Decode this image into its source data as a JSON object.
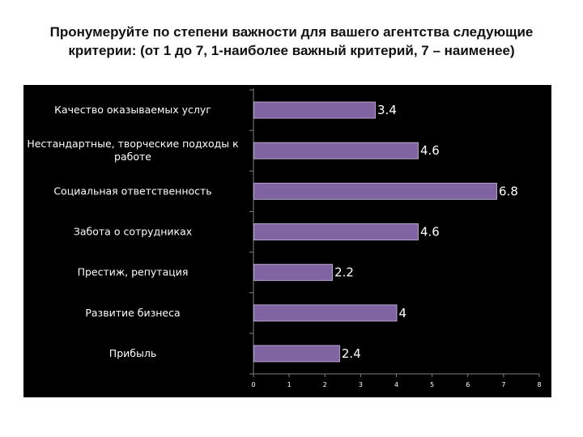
{
  "page": {
    "title_line1": "Пронумеруйте по степени важности для вашего агентства следующие",
    "title_line2": "критерии: (от 1 до 7, 1-наиболее важный критерий, 7 – наименее)"
  },
  "colors": {
    "bar_fill": "#8064a2",
    "bar_stroke": "#b6a4cc",
    "background": "#000000",
    "text": "#ffffff"
  },
  "chart_data": {
    "type": "bar",
    "orientation": "horizontal",
    "categories": [
      [
        "Качество оказываемых услуг"
      ],
      [
        "Нестандартные, творческие подходы к",
        "работе"
      ],
      [
        "Социальная ответственность"
      ],
      [
        "Забота о сотрудниках"
      ],
      [
        "Престиж, репутация"
      ],
      [
        "Развитие бизнеса"
      ],
      [
        "Прибыль"
      ]
    ],
    "values": [
      3.4,
      4.6,
      6.8,
      4.6,
      2.2,
      4,
      2.4
    ],
    "value_labels": [
      "3.4",
      "4.6",
      "6.8",
      "4.6",
      "2.2",
      "4",
      "2.4"
    ],
    "x_ticks": [
      "0",
      "1",
      "2",
      "3",
      "4",
      "5",
      "6",
      "7",
      "8"
    ],
    "xlim": [
      0,
      8
    ],
    "grid": false,
    "legend": "none"
  }
}
